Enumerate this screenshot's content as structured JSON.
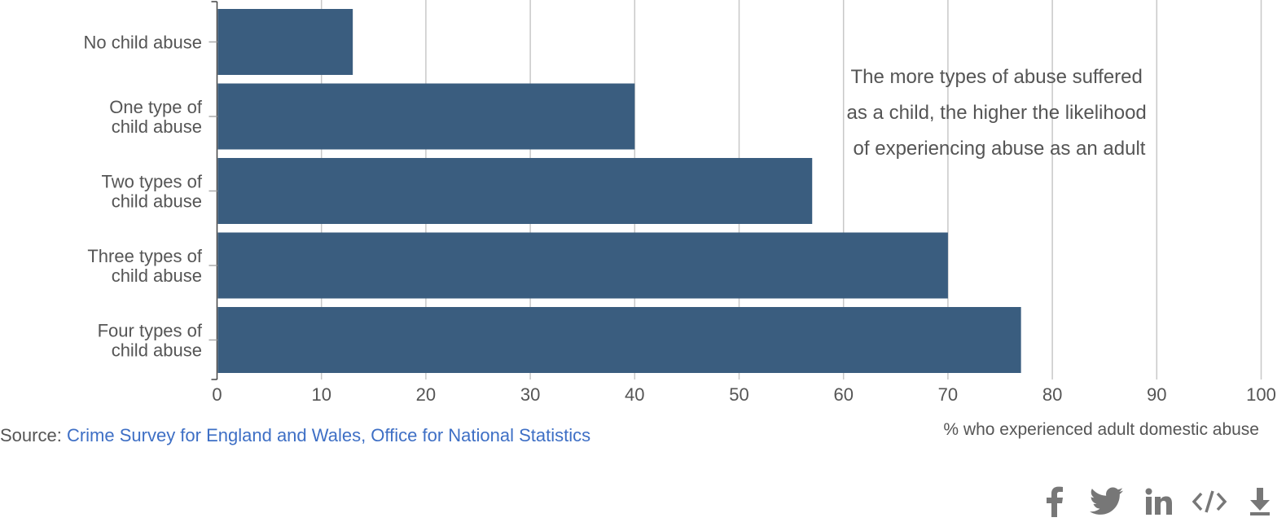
{
  "chart_data": {
    "type": "bar",
    "orientation": "horizontal",
    "categories": [
      [
        "No child abuse"
      ],
      [
        "One type of",
        "child abuse"
      ],
      [
        "Two types of",
        "child abuse"
      ],
      [
        "Three types of",
        "child abuse"
      ],
      [
        "Four types of",
        "child abuse"
      ]
    ],
    "values": [
      13,
      40,
      57,
      70,
      77
    ],
    "xlim": [
      0,
      100
    ],
    "xticks": [
      0,
      10,
      20,
      30,
      40,
      50,
      60,
      70,
      80,
      90,
      100
    ],
    "xlabel": "% who experienced adult domestic abuse",
    "annotation": [
      "The more types of abuse suffered",
      "as a child, the higher the likelihood",
      "of experiencing abuse as an adult"
    ],
    "grid": true,
    "bar_color": "#3a5d7f",
    "grid_color": "#c8c8c8"
  },
  "source": {
    "prefix": "Source:",
    "link_text": "Crime Survey for England and Wales, Office for National Statistics",
    "link_color": "#3e6fc5"
  },
  "share_icons": [
    "facebook-icon",
    "twitter-icon",
    "linkedin-icon",
    "embed-code-icon",
    "download-icon"
  ],
  "icon_color": "#777777"
}
